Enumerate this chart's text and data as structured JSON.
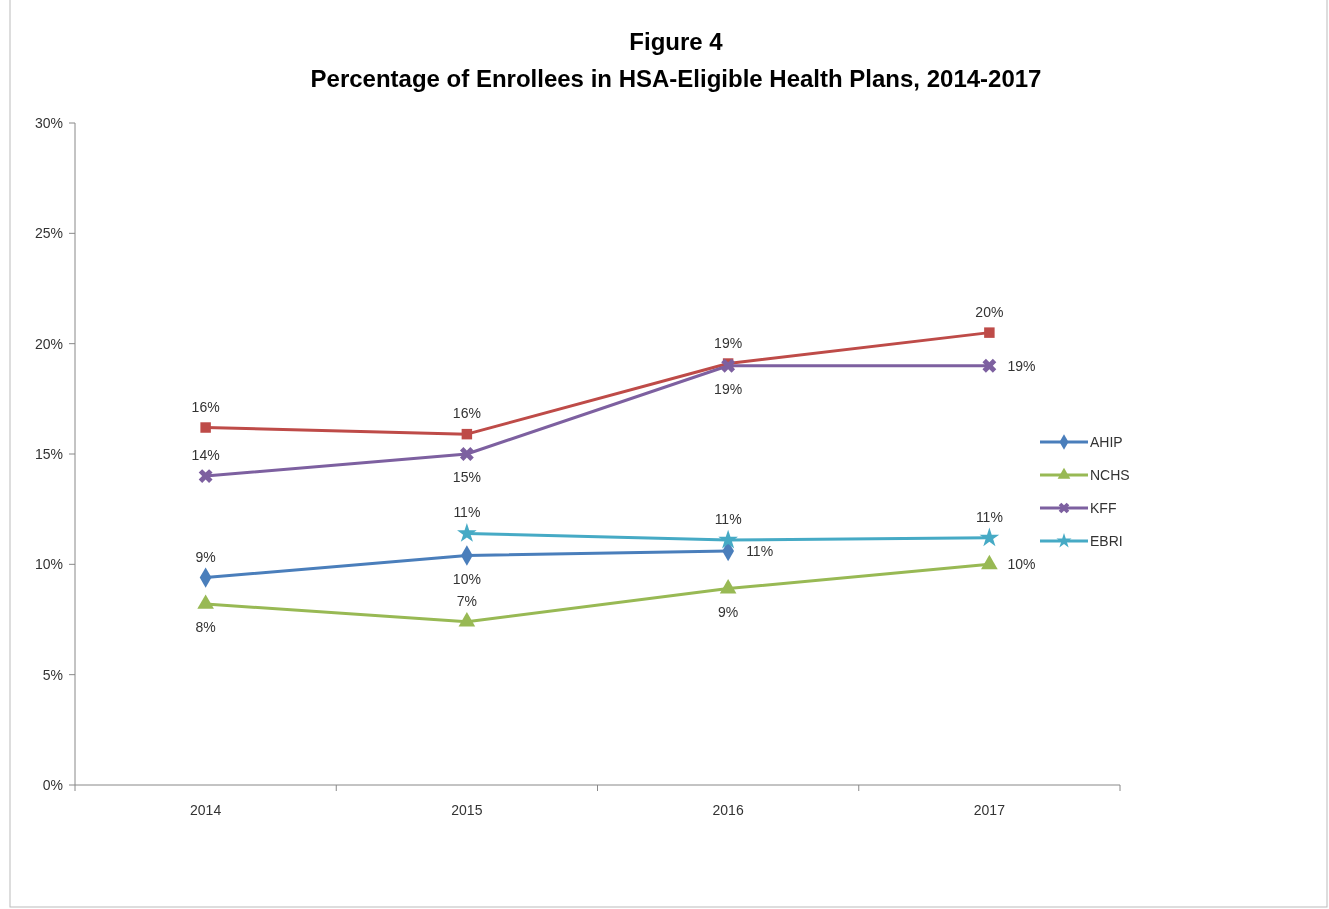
{
  "chart_data": {
    "type": "line",
    "title": "Figure 4",
    "subtitle": "Percentage of Enrollees in HSA-Eligible Health Plans, 2014-2017",
    "categories": [
      "2014",
      "2015",
      "2016",
      "2017"
    ],
    "series": [
      {
        "name": "AHIP",
        "color": "#4a7ebb",
        "marker": "diamond",
        "values": [
          9.4,
          10.4,
          10.6,
          null
        ],
        "value_labels": [
          "9%",
          "10%",
          "11%",
          null
        ]
      },
      {
        "color": "#be4b48",
        "marker": "square",
        "values": [
          16.2,
          15.9,
          19.1,
          20.5
        ],
        "value_labels": [
          "16%",
          "16%",
          "19%",
          "20%"
        ]
      },
      {
        "name": "NCHS",
        "color": "#98b954",
        "marker": "triangle",
        "values": [
          8.2,
          7.4,
          8.9,
          10.0
        ],
        "value_labels": [
          "8%",
          "7%",
          "9%",
          "10%"
        ]
      },
      {
        "name": "KFF",
        "color": "#7d60a0",
        "marker": "cross",
        "values": [
          14.0,
          15.0,
          19.0,
          19.0
        ],
        "value_labels": [
          "14%",
          "15%",
          "19%",
          "19%"
        ]
      },
      {
        "name": "EBRI",
        "color": "#46aac5",
        "marker": "star",
        "values": [
          null,
          11.4,
          11.1,
          11.2
        ],
        "value_labels": [
          null,
          "11%",
          "11%",
          "11%"
        ]
      }
    ],
    "ylim": [
      0,
      30
    ],
    "yticks": [
      {
        "value": 0,
        "label": "0%"
      },
      {
        "value": 5,
        "label": "5%"
      },
      {
        "value": 10,
        "label": "10%"
      },
      {
        "value": 15,
        "label": "15%"
      },
      {
        "value": 20,
        "label": "20%"
      },
      {
        "value": 25,
        "label": "25%"
      },
      {
        "value": 30,
        "label": "30%"
      }
    ],
    "legend": "right",
    "line_style": "solid"
  }
}
